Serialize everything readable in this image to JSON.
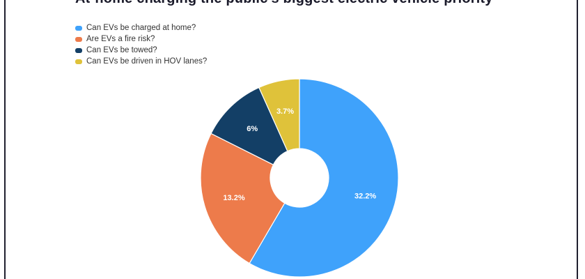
{
  "chart_data": {
    "type": "pie",
    "title": "At-home charging the public's biggest electric vehicle priority",
    "legend_position": "top-left",
    "categories": [
      "Can EVs be charged at home?",
      "Are EVs a fire risk?",
      "Can EVs be towed?",
      "Can EVs be driven in HOV lanes?"
    ],
    "values": [
      32.2,
      13.2,
      6,
      3.7
    ],
    "labels": [
      "32.2%",
      "13.2%",
      "6%",
      "3.7%"
    ],
    "colors": [
      "#3fa2fb",
      "#ed7b4b",
      "#133f66",
      "#dfc23a"
    ]
  }
}
